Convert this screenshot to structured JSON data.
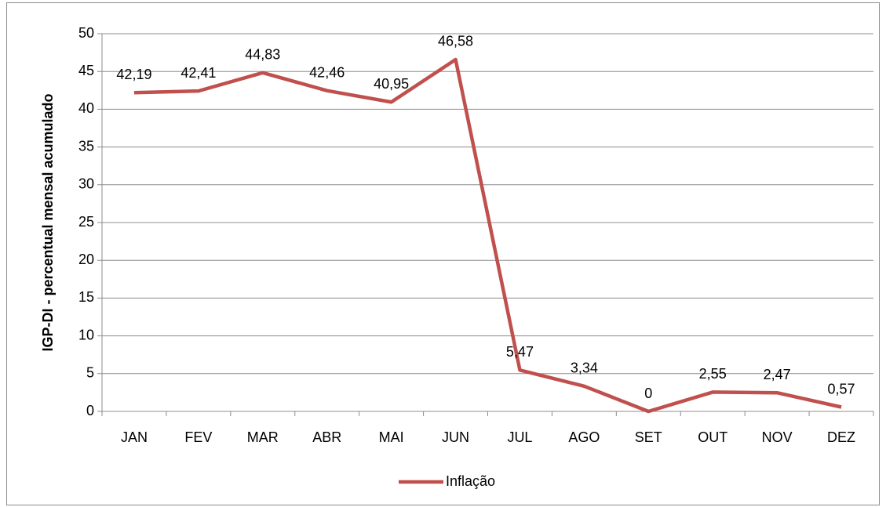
{
  "chart_data": {
    "type": "line",
    "y_label": "IGP-DI - percentual mensal acumulado",
    "categories": [
      "JAN",
      "FEV",
      "MAR",
      "ABR",
      "MAI",
      "JUN",
      "JUL",
      "AGO",
      "SET",
      "OUT",
      "NOV",
      "DEZ"
    ],
    "series": [
      {
        "name": "Inflação",
        "color": "#c0504d",
        "values": [
          42.19,
          42.41,
          44.83,
          42.46,
          40.95,
          46.58,
          5.47,
          3.34,
          0,
          2.55,
          2.47,
          0.57
        ],
        "value_labels": [
          "42,19",
          "42,41",
          "44,83",
          "42,46",
          "40,95",
          "46,58",
          "5,47",
          "3,34",
          "0",
          "2,55",
          "2,47",
          "0,57"
        ]
      }
    ],
    "ylim": [
      0,
      50
    ],
    "yticks": [
      0,
      5,
      10,
      15,
      20,
      25,
      30,
      35,
      40,
      45,
      50
    ],
    "grid": true,
    "legend": "bottom"
  }
}
